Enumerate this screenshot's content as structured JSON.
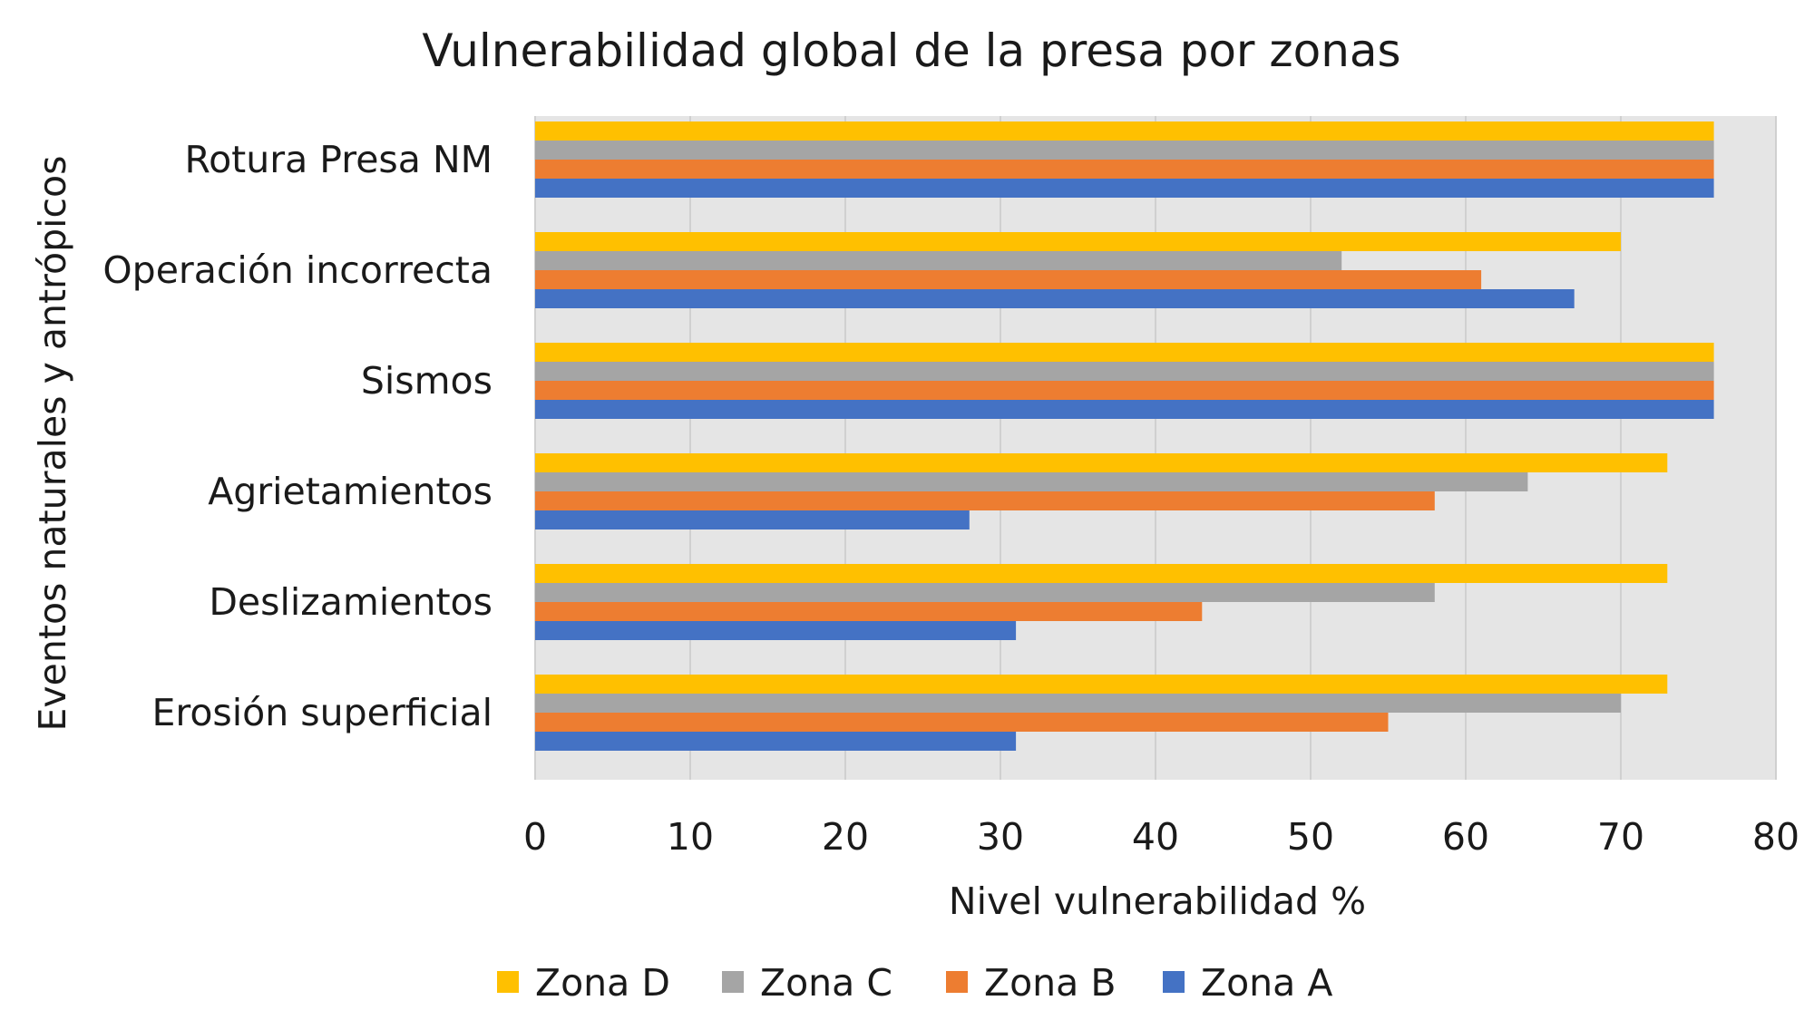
{
  "chart_data": {
    "type": "bar",
    "orientation": "horizontal",
    "title": "Vulnerabilidad global de la presa por zonas",
    "xlabel": "Nivel vulnerabilidad %",
    "ylabel": "Eventos naturales y antrópicos",
    "xlim": [
      0,
      80
    ],
    "xticks": [
      0,
      10,
      20,
      30,
      40,
      50,
      60,
      70,
      80
    ],
    "grid": true,
    "legend_position": "bottom",
    "categories": [
      "Rotura Presa NM",
      "Operación incorrecta",
      "Sismos",
      "Agrietamientos",
      "Deslizamientos",
      "Erosión superficial"
    ],
    "series": [
      {
        "name": "Zona D",
        "color": "#FFC000",
        "values": [
          76,
          70,
          76,
          73,
          73,
          73
        ]
      },
      {
        "name": "Zona C",
        "color": "#A5A5A5",
        "values": [
          76,
          52,
          76,
          64,
          58,
          70
        ]
      },
      {
        "name": "Zona B",
        "color": "#ED7D31",
        "values": [
          76,
          61,
          76,
          58,
          43,
          55
        ]
      },
      {
        "name": "Zona A",
        "color": "#4472C4",
        "values": [
          76,
          67,
          76,
          28,
          31,
          31
        ]
      }
    ],
    "plot_background": "#E5E5E5",
    "gridline_color": "#D0D0D0"
  }
}
